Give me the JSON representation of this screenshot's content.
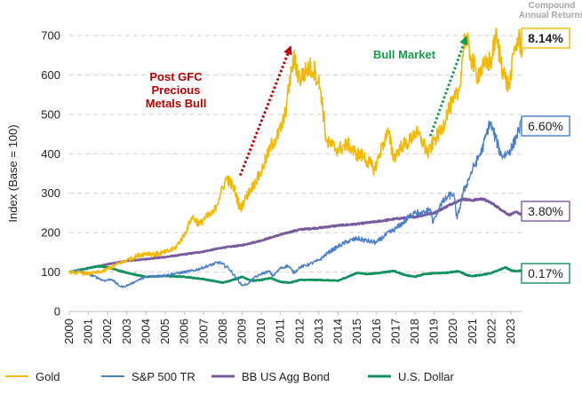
{
  "chart_data": {
    "type": "line",
    "ylabel": "Index (Base = 100)",
    "ylim": [
      0,
      700
    ],
    "yticks": [
      0,
      100,
      200,
      300,
      400,
      500,
      600,
      700
    ],
    "xlim": [
      2000,
      2023.6
    ],
    "xticks": [
      "2000",
      "2001",
      "2002",
      "2003",
      "2004",
      "2005",
      "2006",
      "2007",
      "2008",
      "2009",
      "2010",
      "2011",
      "2012",
      "2013",
      "2014",
      "2015",
      "2016",
      "2017",
      "2018",
      "2019",
      "2020",
      "2021",
      "2022",
      "2023"
    ],
    "grid": "horizontal-dashed",
    "legend_position": "bottom",
    "returns_header": "Compound\nAnnual Returns",
    "series": [
      {
        "name": "Gold",
        "color": "#F5B800",
        "return_label": "8.14%",
        "return_bold": true,
        "points": [
          [
            2000,
            100
          ],
          [
            2001,
            96
          ],
          [
            2001.6,
            100
          ],
          [
            2002,
            108
          ],
          [
            2002.5,
            120
          ],
          [
            2003,
            130
          ],
          [
            2003.5,
            140
          ],
          [
            2004,
            148
          ],
          [
            2004.5,
            145
          ],
          [
            2005,
            150
          ],
          [
            2005.5,
            160
          ],
          [
            2006,
            195
          ],
          [
            2006.4,
            240
          ],
          [
            2006.8,
            220
          ],
          [
            2007,
            235
          ],
          [
            2007.5,
            250
          ],
          [
            2007.9,
            300
          ],
          [
            2008.2,
            340
          ],
          [
            2008.6,
            310
          ],
          [
            2008.9,
            260
          ],
          [
            2009.2,
            290
          ],
          [
            2009.7,
            330
          ],
          [
            2010,
            355
          ],
          [
            2010.5,
            420
          ],
          [
            2010.9,
            450
          ],
          [
            2011.2,
            490
          ],
          [
            2011.6,
            620
          ],
          [
            2011.7,
            640
          ],
          [
            2012,
            590
          ],
          [
            2012.5,
            620
          ],
          [
            2012.8,
            610
          ],
          [
            2013.1,
            560
          ],
          [
            2013.4,
            430
          ],
          [
            2013.7,
            420
          ],
          [
            2014,
            410
          ],
          [
            2014.5,
            425
          ],
          [
            2014.9,
            400
          ],
          [
            2015.3,
            395
          ],
          [
            2015.9,
            360
          ],
          [
            2016.3,
            420
          ],
          [
            2016.6,
            455
          ],
          [
            2016.9,
            390
          ],
          [
            2017.3,
            420
          ],
          [
            2017.7,
            430
          ],
          [
            2018,
            455
          ],
          [
            2018.3,
            440
          ],
          [
            2018.7,
            400
          ],
          [
            2019,
            435
          ],
          [
            2019.4,
            460
          ],
          [
            2019.7,
            510
          ],
          [
            2020,
            530
          ],
          [
            2020.3,
            560
          ],
          [
            2020.6,
            700
          ],
          [
            2020.9,
            650
          ],
          [
            2021.2,
            600
          ],
          [
            2021.6,
            620
          ],
          [
            2022,
            640
          ],
          [
            2022.2,
            700
          ],
          [
            2022.7,
            590
          ],
          [
            2022.9,
            570
          ],
          [
            2023.2,
            670
          ],
          [
            2023.4,
            690
          ],
          [
            2023.6,
            665
          ]
        ]
      },
      {
        "name": "S&P 500 TR",
        "color": "#4A7EC9",
        "return_label": "6.60%",
        "return_bold": false,
        "points": [
          [
            2000,
            100
          ],
          [
            2000.4,
            105
          ],
          [
            2000.7,
            100
          ],
          [
            2001,
            95
          ],
          [
            2001.5,
            85
          ],
          [
            2001.8,
            78
          ],
          [
            2002.2,
            82
          ],
          [
            2002.6,
            65
          ],
          [
            2002.8,
            62
          ],
          [
            2003.2,
            70
          ],
          [
            2003.6,
            80
          ],
          [
            2004,
            88
          ],
          [
            2004.5,
            90
          ],
          [
            2005,
            92
          ],
          [
            2005.5,
            96
          ],
          [
            2006,
            100
          ],
          [
            2006.5,
            104
          ],
          [
            2007,
            112
          ],
          [
            2007.5,
            120
          ],
          [
            2007.8,
            125
          ],
          [
            2008.3,
            110
          ],
          [
            2008.7,
            85
          ],
          [
            2009,
            66
          ],
          [
            2009.3,
            70
          ],
          [
            2009.6,
            85
          ],
          [
            2010,
            95
          ],
          [
            2010.4,
            102
          ],
          [
            2010.6,
            90
          ],
          [
            2011,
            110
          ],
          [
            2011.4,
            116
          ],
          [
            2011.7,
            98
          ],
          [
            2012,
            112
          ],
          [
            2012.5,
            120
          ],
          [
            2013,
            130
          ],
          [
            2013.5,
            150
          ],
          [
            2014,
            165
          ],
          [
            2014.5,
            178
          ],
          [
            2015,
            185
          ],
          [
            2015.6,
            178
          ],
          [
            2016,
            175
          ],
          [
            2016.5,
            195
          ],
          [
            2017,
            210
          ],
          [
            2017.5,
            230
          ],
          [
            2018,
            255
          ],
          [
            2018.3,
            245
          ],
          [
            2018.8,
            260
          ],
          [
            2018.95,
            225
          ],
          [
            2019.3,
            270
          ],
          [
            2019.7,
            290
          ],
          [
            2020,
            300
          ],
          [
            2020.2,
            235
          ],
          [
            2020.5,
            300
          ],
          [
            2021,
            360
          ],
          [
            2021.5,
            410
          ],
          [
            2021.9,
            480
          ],
          [
            2022.2,
            440
          ],
          [
            2022.5,
            395
          ],
          [
            2022.8,
            400
          ],
          [
            2023.1,
            420
          ],
          [
            2023.4,
            460
          ],
          [
            2023.6,
            480
          ]
        ]
      },
      {
        "name": "BB US Agg Bond",
        "color": "#7A5A9E",
        "return_label": "3.80%",
        "return_bold": false,
        "points": [
          [
            2000,
            100
          ],
          [
            2001,
            110
          ],
          [
            2002,
            120
          ],
          [
            2003,
            128
          ],
          [
            2004,
            133
          ],
          [
            2005,
            138
          ],
          [
            2006,
            145
          ],
          [
            2007,
            152
          ],
          [
            2008,
            162
          ],
          [
            2009,
            168
          ],
          [
            2010,
            180
          ],
          [
            2011,
            195
          ],
          [
            2012,
            208
          ],
          [
            2013,
            212
          ],
          [
            2014,
            218
          ],
          [
            2015,
            222
          ],
          [
            2016,
            228
          ],
          [
            2017,
            235
          ],
          [
            2018,
            240
          ],
          [
            2019,
            250
          ],
          [
            2020,
            275
          ],
          [
            2020.5,
            285
          ],
          [
            2021,
            282
          ],
          [
            2021.5,
            286
          ],
          [
            2022,
            275
          ],
          [
            2022.5,
            258
          ],
          [
            2022.9,
            245
          ],
          [
            2023.3,
            252
          ],
          [
            2023.6,
            245
          ]
        ]
      },
      {
        "name": "U.S. Dollar",
        "color": "#12915F",
        "return_label": "0.17%",
        "return_bold": false,
        "points": [
          [
            2000,
            100
          ],
          [
            2000.8,
            108
          ],
          [
            2001.5,
            115
          ],
          [
            2002,
            112
          ],
          [
            2002.5,
            105
          ],
          [
            2003,
            98
          ],
          [
            2004,
            88
          ],
          [
            2005,
            90
          ],
          [
            2006,
            88
          ],
          [
            2007,
            82
          ],
          [
            2008,
            73
          ],
          [
            2008.5,
            80
          ],
          [
            2009,
            88
          ],
          [
            2009.5,
            78
          ],
          [
            2010,
            80
          ],
          [
            2010.5,
            85
          ],
          [
            2011,
            75
          ],
          [
            2011.5,
            73
          ],
          [
            2012,
            80
          ],
          [
            2013,
            80
          ],
          [
            2014,
            78
          ],
          [
            2014.5,
            88
          ],
          [
            2015,
            98
          ],
          [
            2015.5,
            95
          ],
          [
            2016,
            97
          ],
          [
            2016.9,
            103
          ],
          [
            2017.5,
            92
          ],
          [
            2018,
            88
          ],
          [
            2018.5,
            95
          ],
          [
            2019,
            97
          ],
          [
            2019.5,
            98
          ],
          [
            2020,
            100
          ],
          [
            2020.3,
            102
          ],
          [
            2020.7,
            92
          ],
          [
            2021,
            90
          ],
          [
            2021.5,
            93
          ],
          [
            2022,
            98
          ],
          [
            2022.7,
            112
          ],
          [
            2023,
            104
          ],
          [
            2023.3,
            102
          ],
          [
            2023.6,
            104
          ]
        ]
      }
    ],
    "annotations": [
      {
        "text": "Post GFC\nPrecious\nMetals Bull",
        "color": "#C00000",
        "arrow_from": [
          2008.9,
          345
        ],
        "arrow_to": [
          2011.55,
          675
        ]
      },
      {
        "text": "Bull Market",
        "color": "#12A04A",
        "arrow_from": [
          2018.8,
          445
        ],
        "arrow_to": [
          2020.7,
          700
        ]
      }
    ]
  }
}
